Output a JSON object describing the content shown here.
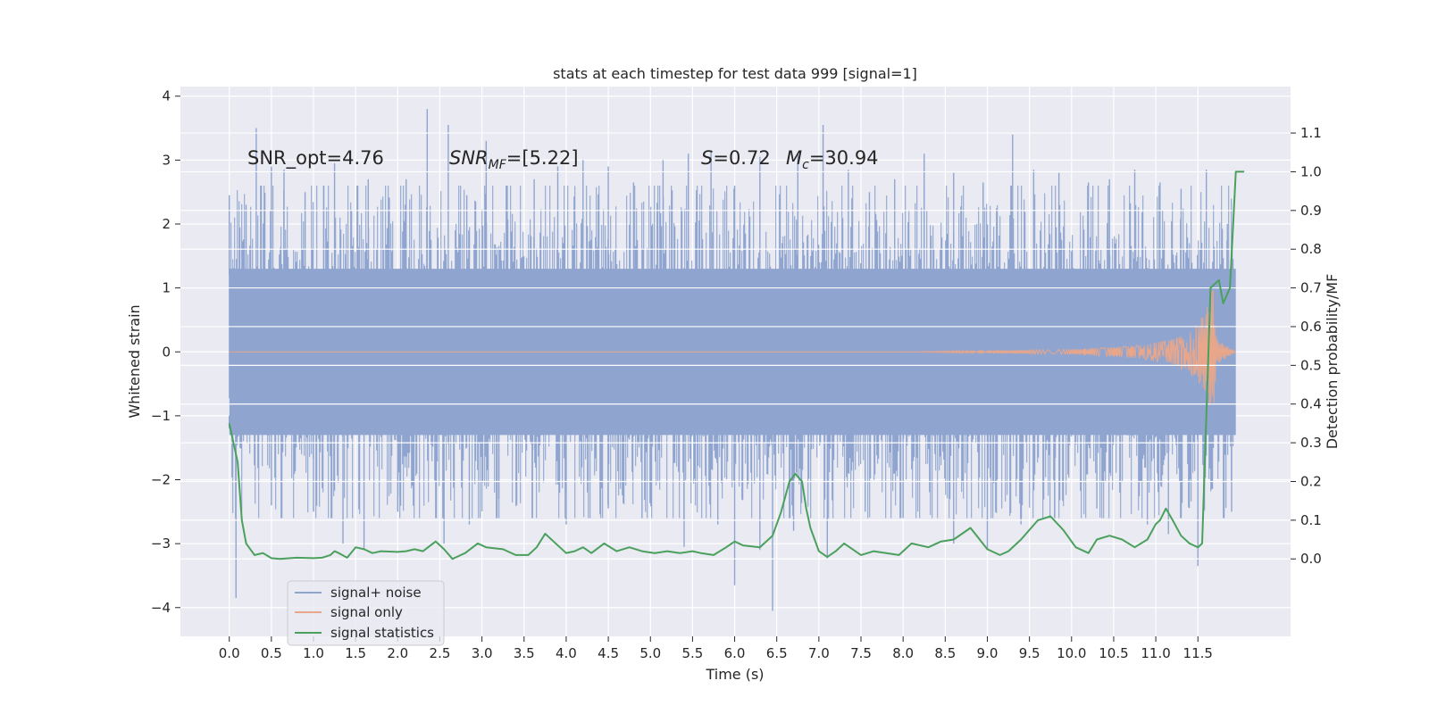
{
  "chart_data": {
    "type": "line",
    "title": "stats at each timestep for test data 999 [signal=1]",
    "xlabel": "Time (s)",
    "ylabel": "Whitened strain",
    "ylabel_right": "Detection probability/MF",
    "xlim": [
      -0.58,
      12.6
    ],
    "ylim": [
      -4.45,
      4.15
    ],
    "ylim_right": [
      -0.2,
      1.22
    ],
    "x_ticks": [
      "0.0",
      "0.5",
      "1.0",
      "1.5",
      "2.0",
      "2.5",
      "3.0",
      "3.5",
      "4.0",
      "4.5",
      "5.0",
      "5.5",
      "6.0",
      "6.5",
      "7.0",
      "7.5",
      "8.0",
      "8.5",
      "9.0",
      "9.5",
      "10.0",
      "10.5",
      "11.0",
      "11.5"
    ],
    "y_ticks": [
      "4",
      "3",
      "2",
      "1",
      "0",
      "−1",
      "−2",
      "−3",
      "−4"
    ],
    "y_ticks_right": [
      "1.1",
      "1.0",
      "0.9",
      "0.8",
      "0.7",
      "0.6",
      "0.5",
      "0.4",
      "0.3",
      "0.2",
      "0.1",
      "0.0"
    ],
    "grid": true,
    "legend_placement": "lower-left",
    "annotations": [
      {
        "id": "snr-opt",
        "text": "SNR_opt=4.76"
      },
      {
        "id": "snr-mf",
        "text": "SNR",
        "sub": "MF",
        "rest": "=[5.22]"
      },
      {
        "id": "spin",
        "text": "S",
        "rest": "=0.72"
      },
      {
        "id": "chirp-mass",
        "text": "M",
        "sub": "c",
        "rest": "=30.94"
      }
    ],
    "series": [
      {
        "name": "signal+ noise",
        "color": "#8fa5cf",
        "description_axis": "left",
        "time_range": [
          0.0,
          11.95
        ],
        "typical_amplitude": 1.55,
        "upper_peaks": [
          [
            0.0,
            2.45
          ],
          [
            0.2,
            2.3
          ],
          [
            0.32,
            3.5
          ],
          [
            0.5,
            2.9
          ],
          [
            0.65,
            2.85
          ],
          [
            0.9,
            2.5
          ],
          [
            1.12,
            2.6
          ],
          [
            1.25,
            2.95
          ],
          [
            1.65,
            2.7
          ],
          [
            1.9,
            2.4
          ],
          [
            2.1,
            2.7
          ],
          [
            2.35,
            3.8
          ],
          [
            2.6,
            3.55
          ],
          [
            2.82,
            2.45
          ],
          [
            3.05,
            3.3
          ],
          [
            3.3,
            2.6
          ],
          [
            3.62,
            2.7
          ],
          [
            3.9,
            2.9
          ],
          [
            4.2,
            3.0
          ],
          [
            4.5,
            2.9
          ],
          [
            4.8,
            2.65
          ],
          [
            5.15,
            3.0
          ],
          [
            5.45,
            3.1
          ],
          [
            5.72,
            3.15
          ],
          [
            6.0,
            2.6
          ],
          [
            6.3,
            3.05
          ],
          [
            6.75,
            3.1
          ],
          [
            7.05,
            3.55
          ],
          [
            7.35,
            2.85
          ],
          [
            7.6,
            2.5
          ],
          [
            7.9,
            2.7
          ],
          [
            8.25,
            3.1
          ],
          [
            8.6,
            2.8
          ],
          [
            8.95,
            2.65
          ],
          [
            9.3,
            3.4
          ],
          [
            9.55,
            2.85
          ],
          [
            9.85,
            2.8
          ],
          [
            10.2,
            2.65
          ],
          [
            10.45,
            2.7
          ],
          [
            10.75,
            2.85
          ],
          [
            11.05,
            2.65
          ],
          [
            11.3,
            2.55
          ],
          [
            11.6,
            2.85
          ],
          [
            11.85,
            2.0
          ]
        ],
        "lower_peaks": [
          [
            0.0,
            -1.0
          ],
          [
            0.08,
            -3.85
          ],
          [
            0.5,
            -2.4
          ],
          [
            1.0,
            -2.5
          ],
          [
            1.35,
            -3.0
          ],
          [
            1.6,
            -3.1
          ],
          [
            2.0,
            -2.5
          ],
          [
            2.55,
            -3.0
          ],
          [
            2.85,
            -2.7
          ],
          [
            3.2,
            -2.3
          ],
          [
            3.6,
            -2.6
          ],
          [
            4.0,
            -2.7
          ],
          [
            4.5,
            -2.45
          ],
          [
            4.9,
            -2.6
          ],
          [
            5.4,
            -3.05
          ],
          [
            5.8,
            -2.7
          ],
          [
            6.0,
            -3.65
          ],
          [
            6.3,
            -3.1
          ],
          [
            6.45,
            -4.05
          ],
          [
            6.7,
            -2.8
          ],
          [
            7.1,
            -3.25
          ],
          [
            7.55,
            -2.5
          ],
          [
            8.0,
            -2.6
          ],
          [
            8.6,
            -3.0
          ],
          [
            9.0,
            -3.1
          ],
          [
            9.4,
            -2.7
          ],
          [
            9.8,
            -2.6
          ],
          [
            10.3,
            -2.45
          ],
          [
            10.9,
            -2.7
          ],
          [
            11.15,
            -2.85
          ],
          [
            11.5,
            -3.35
          ],
          [
            11.9,
            -2.5
          ]
        ]
      },
      {
        "name": "signal only",
        "color": "#e8a68b",
        "description_axis": "left",
        "time_range": [
          0.0,
          11.95
        ],
        "envelope": [
          [
            0.0,
            0.0
          ],
          [
            8.0,
            0.0
          ],
          [
            9.0,
            0.02
          ],
          [
            10.0,
            0.04
          ],
          [
            10.8,
            0.1
          ],
          [
            11.2,
            0.2
          ],
          [
            11.45,
            0.38
          ],
          [
            11.6,
            0.65
          ],
          [
            11.68,
            1.05
          ],
          [
            11.72,
            0.2
          ],
          [
            11.95,
            0.0
          ]
        ]
      },
      {
        "name": "signal statistics",
        "color": "#4aa05c",
        "description_axis": "right",
        "x": [
          0.0,
          0.1,
          0.15,
          0.2,
          0.3,
          0.4,
          0.5,
          0.6,
          0.8,
          1.0,
          1.1,
          1.2,
          1.25,
          1.3,
          1.4,
          1.5,
          1.6,
          1.7,
          1.8,
          2.0,
          2.1,
          2.2,
          2.3,
          2.45,
          2.55,
          2.65,
          2.8,
          2.95,
          3.05,
          3.25,
          3.4,
          3.55,
          3.65,
          3.75,
          3.85,
          4.0,
          4.1,
          4.2,
          4.3,
          4.45,
          4.6,
          4.75,
          4.9,
          5.05,
          5.2,
          5.35,
          5.5,
          5.6,
          5.75,
          5.9,
          6.0,
          6.1,
          6.3,
          6.45,
          6.55,
          6.65,
          6.72,
          6.8,
          6.85,
          6.9,
          7.0,
          7.1,
          7.2,
          7.3,
          7.4,
          7.5,
          7.65,
          7.8,
          7.95,
          8.1,
          8.3,
          8.45,
          8.6,
          8.8,
          9.0,
          9.15,
          9.25,
          9.4,
          9.6,
          9.75,
          9.9,
          10.05,
          10.2,
          10.3,
          10.45,
          10.6,
          10.75,
          10.9,
          11.0,
          11.05,
          11.12,
          11.2,
          11.3,
          11.4,
          11.5,
          11.55,
          11.65,
          11.75,
          11.8,
          11.88,
          11.95,
          12.05
        ],
        "y": [
          0.35,
          0.25,
          0.1,
          0.04,
          0.01,
          0.015,
          0.002,
          0.0,
          0.003,
          0.002,
          0.003,
          0.01,
          0.02,
          0.015,
          0.003,
          0.03,
          0.025,
          0.015,
          0.02,
          0.018,
          0.02,
          0.025,
          0.02,
          0.045,
          0.025,
          0.0,
          0.015,
          0.04,
          0.03,
          0.025,
          0.01,
          0.01,
          0.03,
          0.065,
          0.045,
          0.015,
          0.02,
          0.03,
          0.015,
          0.04,
          0.02,
          0.03,
          0.02,
          0.015,
          0.02,
          0.015,
          0.02,
          0.015,
          0.01,
          0.03,
          0.045,
          0.035,
          0.03,
          0.06,
          0.12,
          0.2,
          0.22,
          0.2,
          0.13,
          0.08,
          0.02,
          0.005,
          0.02,
          0.04,
          0.025,
          0.01,
          0.02,
          0.015,
          0.01,
          0.04,
          0.03,
          0.045,
          0.05,
          0.08,
          0.025,
          0.01,
          0.02,
          0.05,
          0.1,
          0.11,
          0.075,
          0.03,
          0.015,
          0.05,
          0.06,
          0.05,
          0.03,
          0.05,
          0.09,
          0.1,
          0.13,
          0.1,
          0.06,
          0.04,
          0.03,
          0.04,
          0.7,
          0.72,
          0.66,
          0.7,
          1.0,
          1.0
        ]
      }
    ]
  }
}
